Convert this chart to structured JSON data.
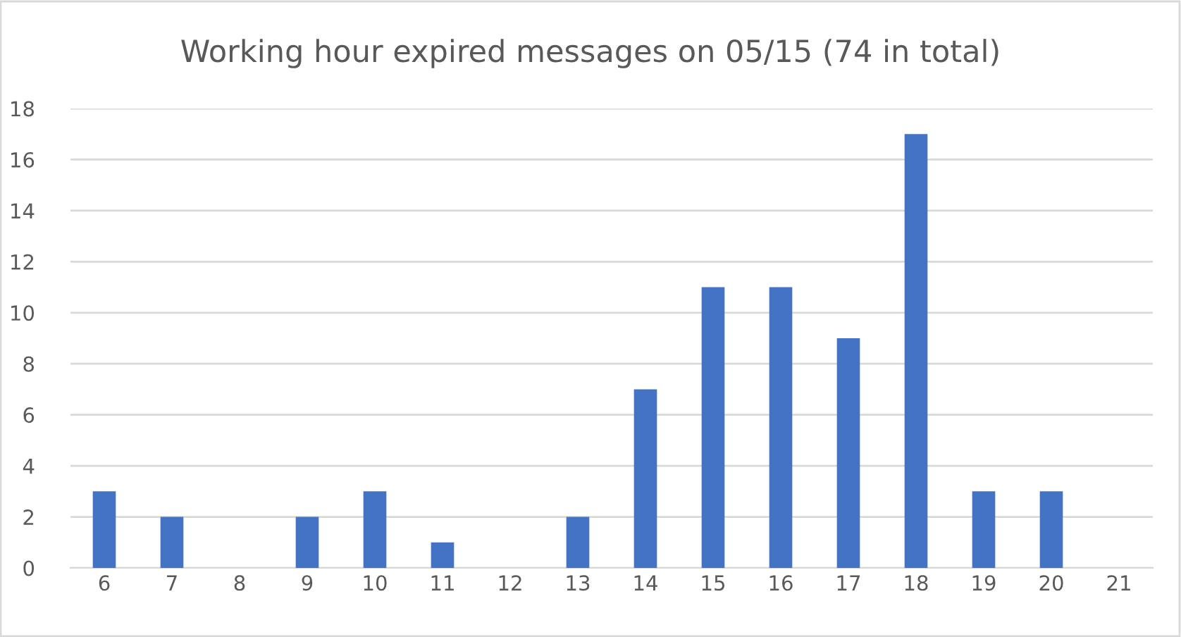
{
  "chart_data": {
    "type": "bar",
    "title": "Working hour expired messages on 05/15 (74 in total)",
    "categories": [
      "6",
      "7",
      "8",
      "9",
      "10",
      "11",
      "12",
      "13",
      "14",
      "15",
      "16",
      "17",
      "18",
      "19",
      "20",
      "21"
    ],
    "values": [
      3,
      2,
      0,
      2,
      3,
      1,
      0,
      2,
      7,
      11,
      11,
      9,
      17,
      3,
      3,
      0
    ],
    "color": "#4472c4",
    "ylim": [
      0,
      18
    ],
    "yticks": [
      0,
      2,
      4,
      6,
      8,
      10,
      12,
      14,
      16,
      18
    ],
    "grid": "y",
    "legend": false
  }
}
